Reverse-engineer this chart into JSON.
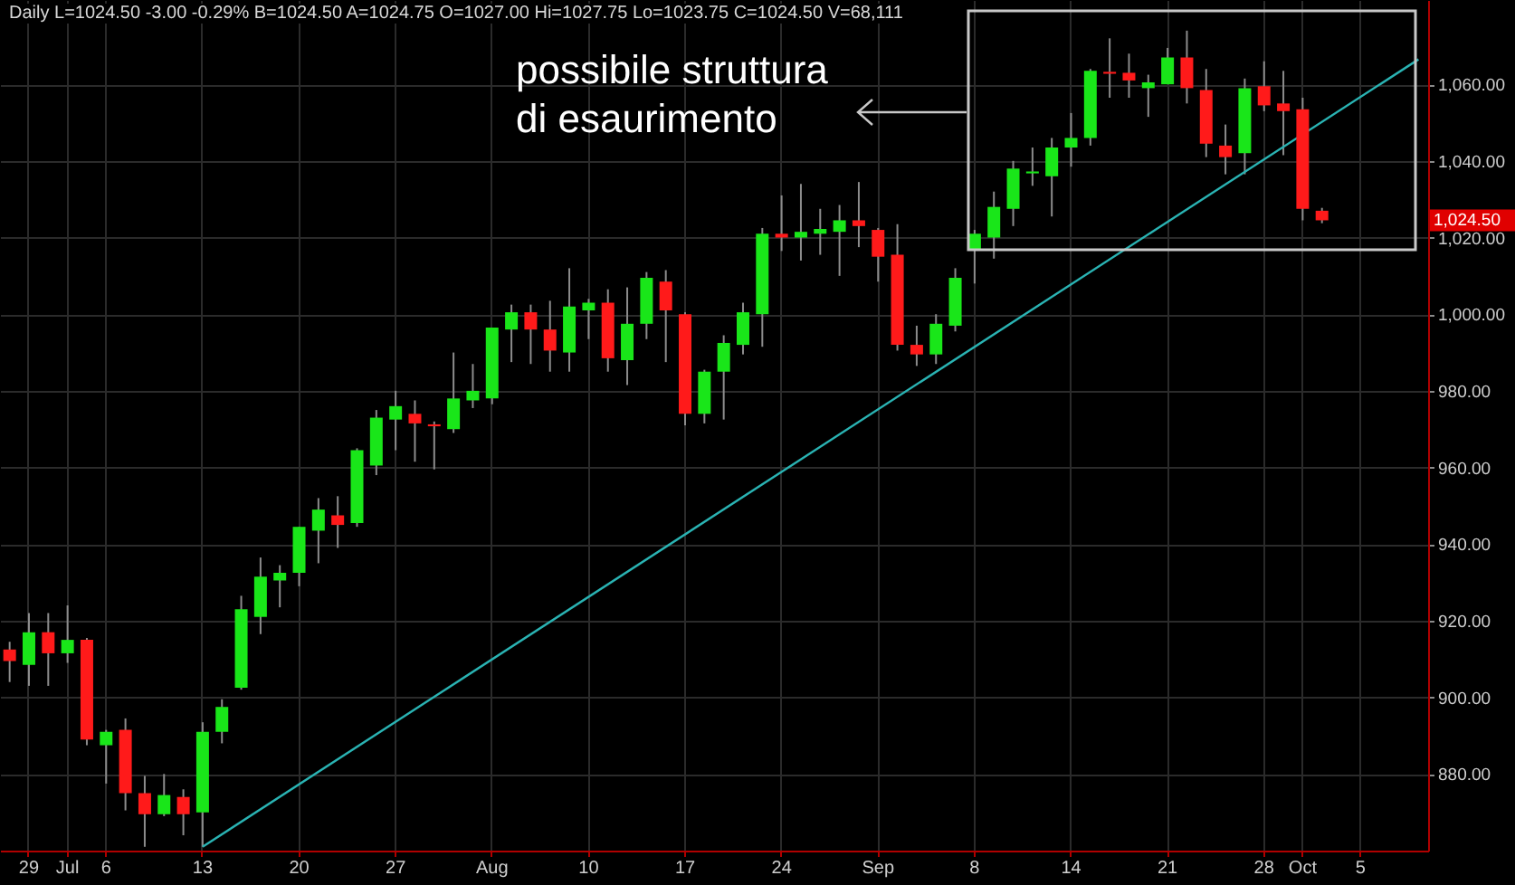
{
  "chart_data": {
    "type": "candlestick",
    "annotations": [
      "Daily L=1024.50 -3.00 -0.29% B=1024.50 A=1024.75 O=1027.00 Hi=1027.75 Lo=1023.75 C=1024.50 V=68,111",
      "possibile struttura\ndi esaurimento",
      "1,024.50"
    ],
    "categories": [
      null,
      "29",
      null,
      "Jul",
      null,
      "6",
      null,
      null,
      null,
      null,
      "13",
      null,
      null,
      null,
      null,
      "20",
      null,
      null,
      null,
      null,
      "27",
      null,
      null,
      null,
      null,
      "Aug",
      null,
      null,
      null,
      null,
      "10",
      null,
      null,
      null,
      null,
      "17",
      null,
      null,
      null,
      null,
      "24",
      null,
      null,
      null,
      null,
      "Sep",
      null,
      null,
      null,
      null,
      "8",
      null,
      null,
      null,
      null,
      "14",
      null,
      null,
      null,
      null,
      "21",
      null,
      null,
      null,
      null,
      "28",
      null,
      "Oct",
      null,
      null,
      "5",
      null,
      null,
      null
    ],
    "ohlc": [
      [
        912.5,
        914.5,
        904,
        909.5
      ],
      [
        908.5,
        922,
        903,
        917
      ],
      [
        917,
        922,
        903,
        911.5
      ],
      [
        911.5,
        924,
        909,
        915
      ],
      [
        915,
        915.5,
        887.5,
        889
      ],
      [
        887.5,
        891.5,
        877.5,
        891
      ],
      [
        891.5,
        894.5,
        870.5,
        875
      ],
      [
        875,
        879.5,
        861,
        869.5
      ],
      [
        869.5,
        880,
        869,
        874.5
      ],
      [
        874,
        876,
        864,
        869.5
      ],
      [
        870,
        893.5,
        861,
        891
      ],
      [
        891,
        899.5,
        888,
        897.5
      ],
      [
        902.5,
        926.5,
        902,
        923
      ],
      [
        921,
        936.5,
        916.5,
        931.5
      ],
      [
        930.5,
        934.5,
        923.5,
        932.5
      ],
      [
        932.5,
        944.5,
        929,
        944.5
      ],
      [
        943.5,
        952,
        935,
        949
      ],
      [
        947.5,
        952.5,
        939,
        945
      ],
      [
        945.5,
        965,
        944.5,
        964.5
      ],
      [
        960.5,
        975,
        958,
        973
      ],
      [
        972.5,
        980,
        964.5,
        976
      ],
      [
        974,
        977.5,
        961.5,
        971.5
      ],
      [
        971.25,
        972,
        959.5,
        970.75
      ],
      [
        970,
        990,
        969,
        978
      ],
      [
        977.5,
        987,
        975.5,
        980
      ],
      [
        978,
        996.5,
        976.5,
        996.5
      ],
      [
        996,
        1002.5,
        987.5,
        1000.5
      ],
      [
        1000.5,
        1002.5,
        987,
        996
      ],
      [
        996,
        1003.5,
        985,
        990.5
      ],
      [
        990,
        1012,
        985,
        1002
      ],
      [
        1001,
        1004,
        993.5,
        1003
      ],
      [
        1003,
        1006.5,
        985,
        988.5
      ],
      [
        988,
        1007,
        981.5,
        997.5
      ],
      [
        997.5,
        1011,
        993.5,
        1009.5
      ],
      [
        1008.5,
        1011.5,
        987.5,
        1001
      ],
      [
        1000,
        1000.5,
        971,
        974
      ],
      [
        974,
        985.5,
        971.5,
        985
      ],
      [
        985,
        994.5,
        972.5,
        992.5
      ],
      [
        992,
        1003,
        989.5,
        1000.5
      ],
      [
        1000,
        1022.5,
        991.5,
        1021
      ],
      [
        1021,
        1031,
        1016.5,
        1020
      ],
      [
        1020,
        1034,
        1014,
        1021.5
      ],
      [
        1021,
        1027.5,
        1015.5,
        1022.25
      ],
      [
        1021.5,
        1028.5,
        1010,
        1024.5
      ],
      [
        1024.5,
        1034.5,
        1017.5,
        1023
      ],
      [
        1022,
        1022.5,
        1008.5,
        1015
      ],
      [
        1015.5,
        1023.5,
        990.5,
        992
      ],
      [
        992,
        997,
        986.5,
        989.5
      ],
      [
        989.5,
        1000,
        987,
        997.5
      ],
      [
        997,
        1012,
        995.5,
        1009.5
      ],
      [
        1017,
        1022,
        1008,
        1021
      ],
      [
        1020,
        1032,
        1014.5,
        1028
      ],
      [
        1027.5,
        1040,
        1023,
        1038
      ],
      [
        1036.75,
        1043.5,
        1033.5,
        1037.25
      ],
      [
        1036,
        1046,
        1025.5,
        1043.5
      ],
      [
        1043.5,
        1052.5,
        1038.5,
        1046
      ],
      [
        1046,
        1064,
        1044,
        1063.5
      ],
      [
        1063.25,
        1072,
        1056.5,
        1062.75
      ],
      [
        1063,
        1068,
        1056.5,
        1061
      ],
      [
        1059,
        1062.5,
        1051.5,
        1060.5
      ],
      [
        1060,
        1069.5,
        1060,
        1067
      ],
      [
        1067,
        1074,
        1055,
        1059
      ],
      [
        1058.5,
        1064,
        1041,
        1044.5
      ],
      [
        1044,
        1049.5,
        1036.5,
        1041
      ],
      [
        1042,
        1061.5,
        1036.5,
        1059
      ],
      [
        1059.5,
        1066,
        1053,
        1054.5
      ],
      [
        1055,
        1063.5,
        1041.5,
        1053
      ],
      [
        1053.5,
        1056.5,
        1024.5,
        1027.5
      ],
      [
        1027,
        1027.75,
        1023.75,
        1024.5
      ],
      null,
      null,
      null,
      null,
      null
    ],
    "series": [
      {
        "type": "line",
        "color": "#2ab3b3",
        "values": [
          null,
          null,
          null,
          null,
          null,
          null,
          null,
          null,
          null,
          null,
          861,
          null,
          null,
          null,
          null,
          null,
          null,
          null,
          null,
          null,
          null,
          null,
          null,
          null,
          null,
          null,
          null,
          null,
          null,
          null,
          null,
          null,
          null,
          null,
          null,
          null,
          null,
          null,
          null,
          null,
          null,
          null,
          null,
          null,
          null,
          null,
          null,
          null,
          null,
          null,
          null,
          null,
          null,
          null,
          null,
          null,
          null,
          null,
          null,
          null,
          null,
          null,
          null,
          null,
          null,
          null,
          null,
          null,
          null,
          null,
          null,
          null,
          null,
          1066.5
        ]
      }
    ],
    "ylim": [
      860,
      1082
    ],
    "yticks": [
      {
        "value": 880,
        "label": "880.00"
      },
      {
        "value": 900,
        "label": "900.00"
      },
      {
        "value": 920,
        "label": "920.00"
      },
      {
        "value": 940,
        "label": "940.00"
      },
      {
        "value": 960,
        "label": "960.00"
      },
      {
        "value": 980,
        "label": "980.00"
      },
      {
        "value": 1000,
        "label": "1,000.00"
      },
      {
        "value": 1020,
        "label": "1,020.00"
      },
      {
        "value": 1040,
        "label": "1,040.00"
      },
      {
        "value": 1060,
        "label": "1,060.00"
      }
    ],
    "grid": true
  }
}
